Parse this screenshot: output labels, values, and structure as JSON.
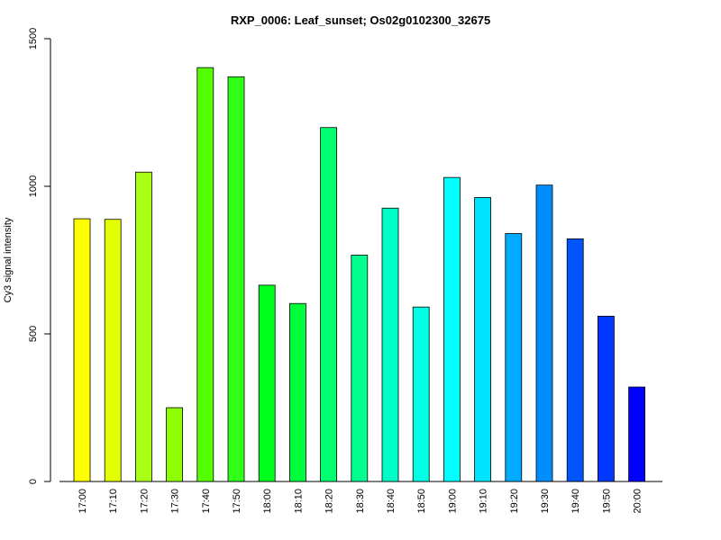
{
  "chart_data": {
    "type": "bar",
    "title": "RXP_0006: Leaf_sunset; Os02g0102300_32675",
    "xlabel": "",
    "ylabel": "Cy3 signal intensity",
    "ylim": [
      0,
      1500
    ],
    "yticks": [
      0,
      500,
      1000,
      1500
    ],
    "grid": false,
    "categories": [
      "17:00",
      "17:10",
      "17:20",
      "17:30",
      "17:40",
      "17:50",
      "18:00",
      "18:10",
      "18:20",
      "18:30",
      "18:40",
      "18:50",
      "19:00",
      "19:10",
      "19:20",
      "19:30",
      "19:40",
      "19:50",
      "20:00"
    ],
    "values": [
      890,
      888,
      1048,
      250,
      1402,
      1371,
      665,
      603,
      1199,
      767,
      926,
      591,
      1030,
      962,
      840,
      1004,
      822,
      560,
      320
    ],
    "colors": [
      "#FFFF00",
      "#E3FF00",
      "#AAFF17",
      "#8EFF00",
      "#55FF00",
      "#31FF17",
      "#00FF1C",
      "#00FF3A",
      "#00FF71",
      "#00FF8E",
      "#00FFC6",
      "#00FFE3",
      "#00FFFF",
      "#00E3FF",
      "#00AAFF",
      "#008EFF",
      "#0055FF",
      "#0038FF",
      "#0000FF"
    ]
  }
}
